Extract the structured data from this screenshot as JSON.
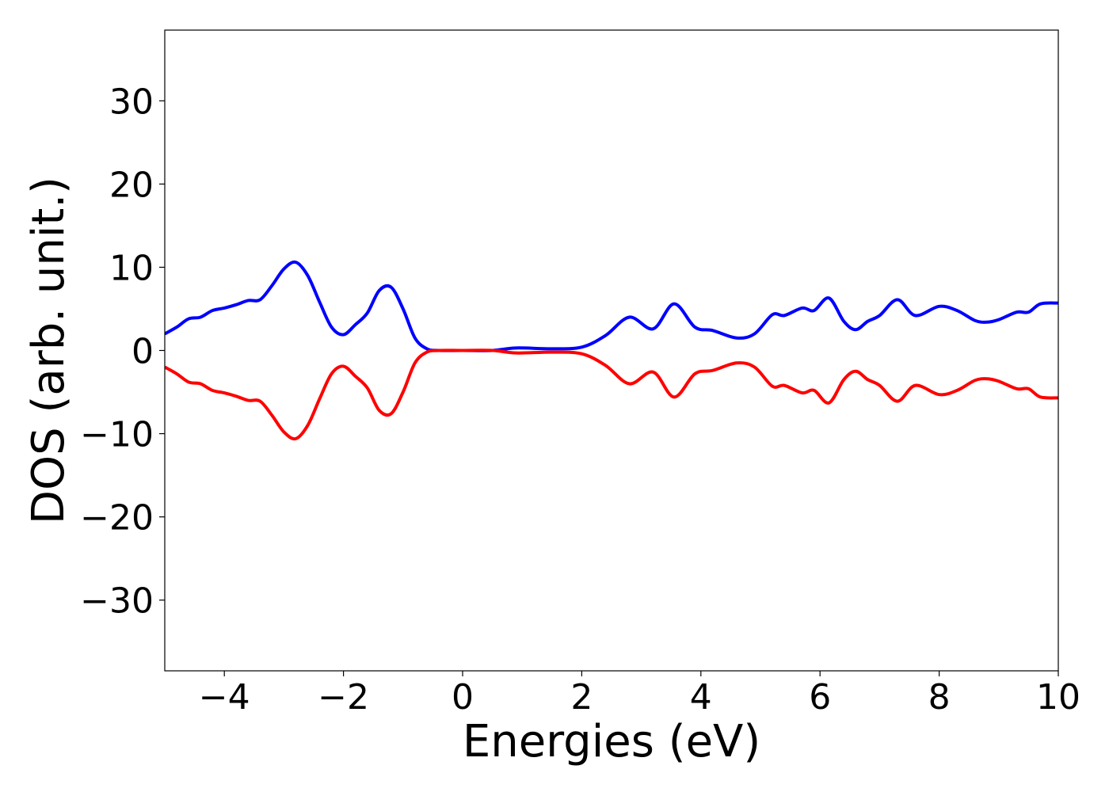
{
  "chart_data": {
    "type": "line",
    "title": "",
    "xlabel": "Energies (eV)",
    "ylabel": "DOS (arb. unit.)",
    "xlim": [
      -5,
      10
    ],
    "ylim": [
      -38.5,
      38.5
    ],
    "xticks": [
      -4,
      -2,
      0,
      2,
      4,
      6,
      8,
      10
    ],
    "xtick_labels": [
      "−4",
      "−2",
      "0",
      "2",
      "4",
      "6",
      "8",
      "10"
    ],
    "yticks": [
      -30,
      -20,
      -10,
      0,
      10,
      20,
      30
    ],
    "ytick_labels": [
      "−30",
      "−20",
      "−10",
      "0",
      "10",
      "20",
      "30"
    ],
    "grid": false,
    "legend": "none",
    "series": [
      {
        "color": "#0000ff",
        "x": [
          -5.0,
          -4.8,
          -4.6,
          -4.4,
          -4.2,
          -4.0,
          -3.8,
          -3.6,
          -3.4,
          -3.2,
          -3.0,
          -2.8,
          -2.6,
          -2.4,
          -2.2,
          -2.0,
          -1.8,
          -1.6,
          -1.4,
          -1.2,
          -1.0,
          -0.8,
          -0.6,
          -0.4,
          0.0,
          0.5,
          0.9,
          1.5,
          2.0,
          2.4,
          2.8,
          3.2,
          3.55,
          3.9,
          4.2,
          4.6,
          4.9,
          5.2,
          5.4,
          5.7,
          5.9,
          6.15,
          6.4,
          6.6,
          6.8,
          7.0,
          7.3,
          7.6,
          8.0,
          8.3,
          8.6,
          8.8,
          9.0,
          9.3,
          9.5,
          9.7,
          10.0
        ],
        "y": [
          2.0,
          2.8,
          3.8,
          4.0,
          4.8,
          5.1,
          5.5,
          6.0,
          6.1,
          7.8,
          9.8,
          10.6,
          9.0,
          5.8,
          2.8,
          1.9,
          3.1,
          4.5,
          7.2,
          7.6,
          5.0,
          1.5,
          0.2,
          0.0,
          0.0,
          0.0,
          0.3,
          0.2,
          0.4,
          1.8,
          4.0,
          2.6,
          5.6,
          2.8,
          2.4,
          1.5,
          2.0,
          4.3,
          4.2,
          5.1,
          4.8,
          6.3,
          3.5,
          2.5,
          3.5,
          4.2,
          6.1,
          4.2,
          5.3,
          4.8,
          3.6,
          3.4,
          3.7,
          4.6,
          4.6,
          5.6,
          5.7
        ]
      },
      {
        "color": "#ff0000",
        "x": [
          -5.0,
          -4.8,
          -4.6,
          -4.4,
          -4.2,
          -4.0,
          -3.8,
          -3.6,
          -3.4,
          -3.2,
          -3.0,
          -2.8,
          -2.6,
          -2.4,
          -2.2,
          -2.0,
          -1.8,
          -1.6,
          -1.4,
          -1.2,
          -1.0,
          -0.8,
          -0.6,
          -0.4,
          0.0,
          0.5,
          0.9,
          1.5,
          2.0,
          2.4,
          2.8,
          3.2,
          3.55,
          3.9,
          4.2,
          4.6,
          4.9,
          5.2,
          5.4,
          5.7,
          5.9,
          6.15,
          6.4,
          6.6,
          6.8,
          7.0,
          7.3,
          7.6,
          8.0,
          8.3,
          8.6,
          8.8,
          9.0,
          9.3,
          9.5,
          9.7,
          10.0
        ],
        "y": [
          -2.0,
          -2.8,
          -3.8,
          -4.0,
          -4.8,
          -5.1,
          -5.5,
          -6.0,
          -6.1,
          -7.8,
          -9.8,
          -10.6,
          -9.0,
          -5.8,
          -2.8,
          -1.9,
          -3.1,
          -4.5,
          -7.2,
          -7.6,
          -5.0,
          -1.5,
          -0.2,
          0.0,
          0.0,
          0.0,
          -0.3,
          -0.2,
          -0.4,
          -1.8,
          -4.0,
          -2.6,
          -5.6,
          -2.8,
          -2.4,
          -1.5,
          -2.0,
          -4.3,
          -4.2,
          -5.1,
          -4.8,
          -6.3,
          -3.5,
          -2.5,
          -3.5,
          -4.2,
          -6.1,
          -4.2,
          -5.3,
          -4.8,
          -3.6,
          -3.4,
          -3.7,
          -4.6,
          -4.6,
          -5.6,
          -5.7
        ]
      }
    ]
  }
}
